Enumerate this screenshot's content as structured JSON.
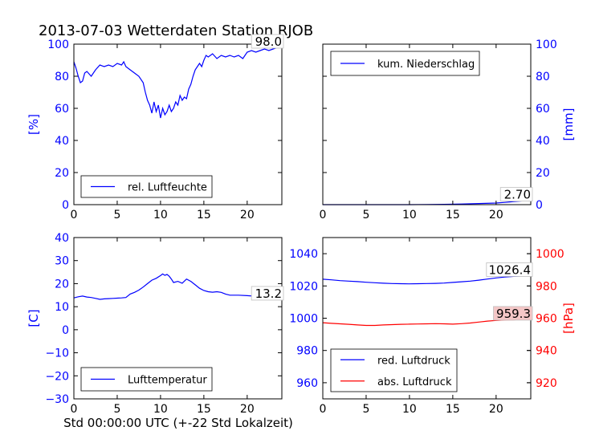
{
  "suptitle": "2013-07-03 Wetterdaten Station RJOB",
  "xlabel": "Std 00:00:00 UTC (+-22 Std Lokalzeit)",
  "chart_data": [
    {
      "type": "line",
      "panel": "top-left",
      "ylabel": "[%]",
      "ylabel_side": "left",
      "ylabel_color": "#0000ff",
      "xlim": [
        0,
        24
      ],
      "ylim": [
        0,
        100
      ],
      "xticks": [
        0,
        5,
        10,
        15,
        20
      ],
      "yticks": [
        0,
        20,
        40,
        60,
        80,
        100
      ],
      "legend": {
        "placement": "lower-left",
        "labels": [
          "rel. Luftfeuchte"
        ]
      },
      "annotation": {
        "text": "98.0",
        "x": 24,
        "y": 98.0,
        "bg": "#ffffff"
      },
      "series": [
        {
          "name": "rel. Luftfeuchte",
          "color": "#0000ff",
          "x": [
            0,
            0.25,
            0.5,
            0.75,
            1,
            1.25,
            1.5,
            2,
            2.5,
            3,
            3.5,
            4,
            4.5,
            5,
            5.5,
            5.75,
            6,
            6.5,
            7,
            7.5,
            8,
            8.25,
            8.5,
            8.75,
            9,
            9.25,
            9.5,
            9.75,
            10,
            10.25,
            10.5,
            10.75,
            11,
            11.25,
            11.5,
            11.75,
            12,
            12.25,
            12.5,
            12.75,
            13,
            13.25,
            13.5,
            13.75,
            14,
            14.25,
            14.5,
            14.75,
            15,
            15.25,
            15.5,
            16,
            16.5,
            17,
            17.5,
            18,
            18.5,
            19,
            19.5,
            20,
            20.5,
            21,
            21.5,
            22,
            22.5,
            23,
            23.5,
            24
          ],
          "values": [
            89,
            85,
            80,
            76,
            77,
            82,
            83,
            80,
            84,
            87,
            86,
            87,
            86,
            88,
            87,
            89,
            86,
            84,
            82,
            80,
            76,
            70,
            65,
            62,
            57,
            64,
            58,
            62,
            54,
            60,
            56,
            58,
            62,
            58,
            60,
            64,
            62,
            68,
            65,
            67,
            66,
            72,
            75,
            80,
            84,
            86,
            88,
            86,
            90,
            93,
            92,
            94,
            91,
            93,
            92,
            93,
            92,
            93,
            91,
            95,
            96,
            95,
            96,
            97,
            96,
            97,
            98,
            98.0
          ]
        }
      ]
    },
    {
      "type": "line",
      "panel": "top-right",
      "ylabel": "[mm]",
      "ylabel_side": "right",
      "ylabel_color": "#0000ff",
      "xlim": [
        0,
        24
      ],
      "ylim": [
        0,
        100
      ],
      "xticks": [
        0,
        5,
        10,
        15,
        20
      ],
      "yticks": [
        0,
        20,
        40,
        60,
        80,
        100
      ],
      "legend": {
        "placement": "upper-left",
        "labels": [
          "kum. Niederschlag"
        ]
      },
      "annotation": {
        "text": "2.70",
        "x": 24,
        "y": 2.7,
        "bg": "#ffffff"
      },
      "series": [
        {
          "name": "kum. Niederschlag",
          "color": "#0000ff",
          "x": [
            0,
            5,
            10,
            12,
            14,
            16,
            18,
            20,
            21,
            22,
            23,
            24
          ],
          "values": [
            0,
            0,
            0,
            0.1,
            0.2,
            0.4,
            0.7,
            1.0,
            1.4,
            1.9,
            2.3,
            2.7
          ]
        }
      ]
    },
    {
      "type": "line",
      "panel": "bottom-left",
      "ylabel": "[C]",
      "ylabel_side": "left",
      "ylabel_color": "#0000ff",
      "xlim": [
        0,
        24
      ],
      "ylim": [
        -30,
        40
      ],
      "xticks": [
        0,
        5,
        10,
        15,
        20
      ],
      "yticks": [
        -30,
        -20,
        -10,
        0,
        10,
        20,
        30,
        40
      ],
      "legend": {
        "placement": "lower-left",
        "labels": [
          "Lufttemperatur"
        ]
      },
      "annotation": {
        "text": "13.2",
        "x": 24,
        "y": 13.2,
        "bg": "#ffffff"
      },
      "series": [
        {
          "name": "Lufttemperatur",
          "color": "#0000ff",
          "x": [
            0,
            0.5,
            1,
            1.5,
            2,
            2.5,
            3,
            3.5,
            4,
            4.5,
            5,
            5.5,
            6,
            6.5,
            7,
            7.5,
            8,
            8.5,
            9,
            9.5,
            10,
            10.25,
            10.5,
            10.75,
            11,
            11.25,
            11.5,
            12,
            12.5,
            13,
            13.5,
            14,
            14.5,
            15,
            15.5,
            16,
            16.5,
            17,
            17.5,
            18,
            19,
            20,
            21,
            22,
            23,
            24
          ],
          "values": [
            13.8,
            14.3,
            14.6,
            14.2,
            14.0,
            13.6,
            13.2,
            13.4,
            13.5,
            13.6,
            13.7,
            13.8,
            14.0,
            15.5,
            16.2,
            17.2,
            18.5,
            20.0,
            21.5,
            22.3,
            23.5,
            24.2,
            23.6,
            24.0,
            23.2,
            22.0,
            20.5,
            21.0,
            20.2,
            22.0,
            21.0,
            19.5,
            18.0,
            17.0,
            16.5,
            16.3,
            16.5,
            16.2,
            15.5,
            15.0,
            15.0,
            14.8,
            14.5,
            14.0,
            13.6,
            13.2
          ]
        }
      ]
    },
    {
      "type": "line",
      "panel": "bottom-right",
      "ylabel": "[hPa]",
      "ylabel_side": "right",
      "ylabel_color": "#ff0000",
      "xlim": [
        0,
        24
      ],
      "ylim": [
        950,
        1050
      ],
      "yticks": [
        960,
        980,
        1000,
        1020,
        1040
      ],
      "xticks": [
        0,
        5,
        10,
        15,
        20
      ],
      "ylim_right": [
        910,
        1010
      ],
      "yticks_right": [
        920,
        940,
        960,
        980,
        1000
      ],
      "legend": {
        "placement": "lower-left",
        "labels": [
          "red. Luftdruck",
          "abs. Luftdruck"
        ]
      },
      "annotations": [
        {
          "text": "1026.4",
          "x": 24,
          "y": 1026.4,
          "axis": "left",
          "bg": "#ffffff"
        },
        {
          "text": "959.3",
          "x": 24,
          "y": 959.3,
          "axis": "right",
          "bg": "#f4c7c7"
        }
      ],
      "series": [
        {
          "name": "red. Luftdruck",
          "color": "#0000ff",
          "axis": "left",
          "x": [
            0,
            1,
            2,
            3,
            4,
            5,
            6,
            7,
            8,
            9,
            10,
            11,
            12,
            13,
            14,
            15,
            16,
            17,
            18,
            19,
            20,
            21,
            22,
            23,
            24
          ],
          "values": [
            1024.2,
            1023.8,
            1023.3,
            1023.0,
            1022.7,
            1022.3,
            1022.0,
            1021.7,
            1021.5,
            1021.4,
            1021.3,
            1021.4,
            1021.5,
            1021.6,
            1021.8,
            1022.2,
            1022.6,
            1023.0,
            1023.6,
            1024.3,
            1025.0,
            1025.5,
            1025.9,
            1026.2,
            1026.4
          ]
        },
        {
          "name": "abs. Luftdruck",
          "color": "#ff0000",
          "axis": "right",
          "x": [
            0,
            1,
            2,
            3,
            4,
            5,
            6,
            7,
            8,
            9,
            10,
            11,
            12,
            13,
            14,
            15,
            16,
            17,
            18,
            19,
            20,
            21,
            22,
            23,
            24
          ],
          "values": [
            957.2,
            956.8,
            956.5,
            956.2,
            955.8,
            955.5,
            955.5,
            955.8,
            956.0,
            956.2,
            956.3,
            956.4,
            956.5,
            956.6,
            956.5,
            956.3,
            956.6,
            957.0,
            957.6,
            958.2,
            958.6,
            958.9,
            959.0,
            959.2,
            959.3
          ]
        }
      ]
    }
  ]
}
